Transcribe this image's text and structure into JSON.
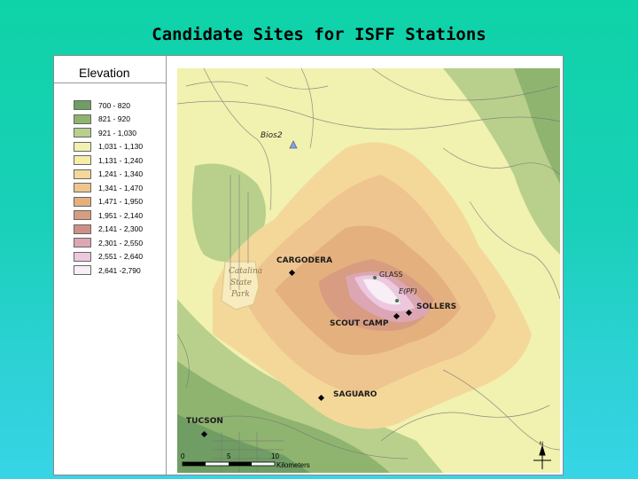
{
  "slide_title": "Candidate Sites for ISFF Stations",
  "legend": {
    "title": "Elevation",
    "items": [
      {
        "label": "700 - 820",
        "color": "#6f9d63"
      },
      {
        "label": "821 - 920",
        "color": "#8fb46f"
      },
      {
        "label": "921 - 1,030",
        "color": "#b8d08c"
      },
      {
        "label": "1,031 - 1,130",
        "color": "#f1f1b0"
      },
      {
        "label": "1,131 - 1,240",
        "color": "#f6ecab"
      },
      {
        "label": "1,241 - 1,340",
        "color": "#f4d89a"
      },
      {
        "label": "1,341 - 1,470",
        "color": "#eec58e"
      },
      {
        "label": "1,471 - 1,950",
        "color": "#e4b07e"
      },
      {
        "label": "1,951 - 2,140",
        "color": "#d89c82"
      },
      {
        "label": "2,141 - 2,300",
        "color": "#cf8f88"
      },
      {
        "label": "2,301 - 2,550",
        "color": "#dca6b4"
      },
      {
        "label": "2,551 - 2,640",
        "color": "#ecc8de"
      },
      {
        "label": "2,641 -2,790",
        "color": "#f8eef6"
      }
    ]
  },
  "sites": {
    "bios2": "Bios2",
    "cargodera": "CARGODERA",
    "glass": "GLASS",
    "epf": "E(PF)",
    "sollers": "SOLLERS",
    "scout_camp": "SCOUT CAMP",
    "saguaro": "SAGUARO",
    "tucson": "TUCSON"
  },
  "park_label": [
    "Catalina",
    "State",
    "Park"
  ],
  "scale_bar": {
    "ticks": [
      "0",
      "5",
      "10"
    ],
    "unit": "Kilometers"
  },
  "north_arrow_label": "N"
}
